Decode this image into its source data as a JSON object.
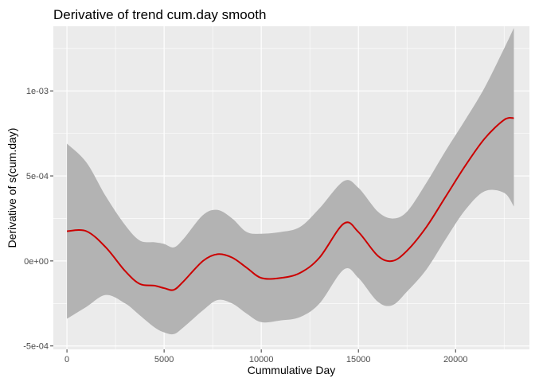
{
  "chart_data": {
    "type": "line",
    "title": "Derivative of trend cum.day smooth",
    "xlabel": "Cummulative Day",
    "ylabel": "Derivative of s(cum.day)",
    "xlim": [
      -700,
      23800
    ],
    "ylim": [
      -0.00052,
      0.00138
    ],
    "x_ticks": [
      0,
      5000,
      10000,
      15000,
      20000
    ],
    "x_tick_labels": [
      "0",
      "5000",
      "10000",
      "15000",
      "20000"
    ],
    "y_ticks": [
      -0.0005,
      0,
      0.0005,
      0.001
    ],
    "y_tick_labels": [
      "-5e-04",
      "0e+00",
      "5e-04",
      "1e-03"
    ],
    "grid": true,
    "legend": "none",
    "series": [
      {
        "values": {
          "x": [
            0,
            1000,
            2000,
            3000,
            3750,
            4500,
            5000,
            5500,
            6000,
            7000,
            7750,
            8500,
            9250,
            10000,
            11000,
            12000,
            13000,
            14250,
            15000,
            16000,
            16750,
            17500,
            18500,
            19500,
            20500,
            21500,
            22500,
            23000
          ],
          "y": [
            0.000175,
            0.000175,
            8e-05,
            -6e-05,
            -0.000135,
            -0.000145,
            -0.00016,
            -0.00017,
            -0.00012,
            0.0,
            4e-05,
            2e-05,
            -4e-05,
            -0.0001,
            -0.0001,
            -7e-05,
            2e-05,
            0.00022,
            0.00017,
            3e-05,
            0.0,
            6e-05,
            0.0002,
            0.00038,
            0.00056,
            0.00072,
            0.00083,
            0.00084
          ]
        },
        "upper": [
          0.00069,
          0.00058,
          0.00038,
          0.00021,
          0.00012,
          0.00011,
          0.0001,
          8e-05,
          0.00013,
          0.00027,
          0.0003,
          0.00025,
          0.00017,
          0.00016,
          0.00017,
          0.0002,
          0.00031,
          0.00047,
          0.00043,
          0.00029,
          0.00025,
          0.00029,
          0.00046,
          0.00065,
          0.00083,
          0.00102,
          0.00125,
          0.00137
        ],
        "lower": [
          -0.00034,
          -0.00027,
          -0.0002,
          -0.00025,
          -0.00032,
          -0.00039,
          -0.00042,
          -0.00043,
          -0.00039,
          -0.00029,
          -0.00023,
          -0.00025,
          -0.00031,
          -0.00036,
          -0.00035,
          -0.00033,
          -0.00025,
          -5e-05,
          -0.0001,
          -0.00024,
          -0.00026,
          -0.00018,
          -5e-05,
          0.00013,
          0.0003,
          0.00041,
          0.0004,
          0.00032
        ],
        "color": "#cc0000"
      }
    ]
  },
  "colors": {
    "panel_background": "#ebebeb",
    "gridline": "#ffffff",
    "ribbon": "#b3b3b3",
    "line": "#cc0000"
  }
}
